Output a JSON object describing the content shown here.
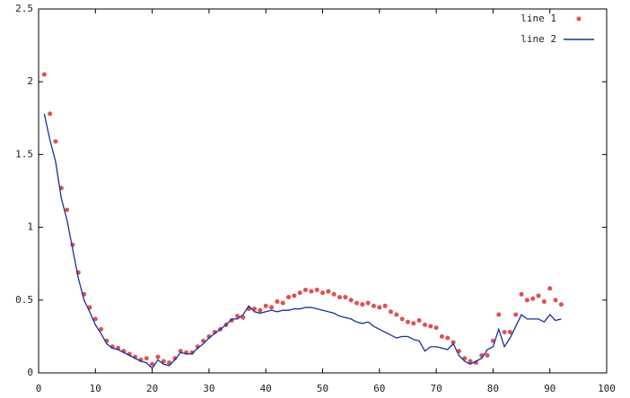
{
  "chart_data": {
    "type": "line",
    "x": [
      1,
      2,
      3,
      4,
      5,
      6,
      7,
      8,
      9,
      10,
      11,
      12,
      13,
      14,
      15,
      16,
      17,
      18,
      19,
      20,
      21,
      22,
      23,
      24,
      25,
      26,
      27,
      28,
      29,
      30,
      31,
      32,
      33,
      34,
      35,
      36,
      37,
      38,
      39,
      40,
      41,
      42,
      43,
      44,
      45,
      46,
      47,
      48,
      49,
      50,
      51,
      52,
      53,
      54,
      55,
      56,
      57,
      58,
      59,
      60,
      61,
      62,
      63,
      64,
      65,
      66,
      67,
      68,
      69,
      70,
      71,
      72,
      73,
      74,
      75,
      76,
      77,
      78,
      79,
      80,
      81,
      82,
      83,
      84,
      85,
      86,
      87,
      88,
      89,
      90,
      91,
      92
    ],
    "series": [
      {
        "name": "line 1",
        "style": "points",
        "color": "#e05050",
        "values": [
          2.05,
          1.78,
          1.59,
          1.27,
          1.12,
          0.88,
          0.69,
          0.54,
          0.45,
          0.37,
          0.3,
          0.22,
          0.18,
          0.17,
          0.15,
          0.13,
          0.11,
          0.09,
          0.1,
          0.06,
          0.11,
          0.08,
          0.07,
          0.1,
          0.15,
          0.14,
          0.14,
          0.18,
          0.22,
          0.25,
          0.28,
          0.3,
          0.33,
          0.36,
          0.39,
          0.38,
          0.44,
          0.44,
          0.43,
          0.46,
          0.45,
          0.49,
          0.48,
          0.52,
          0.53,
          0.55,
          0.57,
          0.56,
          0.57,
          0.55,
          0.56,
          0.54,
          0.52,
          0.52,
          0.5,
          0.48,
          0.47,
          0.48,
          0.46,
          0.45,
          0.46,
          0.42,
          0.4,
          0.37,
          0.35,
          0.34,
          0.36,
          0.33,
          0.32,
          0.31,
          0.25,
          0.24,
          0.21,
          0.15,
          0.1,
          0.08,
          0.07,
          0.12,
          0.12,
          0.22,
          0.4,
          0.28,
          0.28,
          0.4,
          0.54,
          0.5,
          0.51,
          0.53,
          0.49,
          0.58,
          0.5,
          0.47
        ]
      },
      {
        "name": "line 2",
        "style": "lines",
        "color": "#1a2fa0",
        "values": [
          1.78,
          1.6,
          1.45,
          1.2,
          1.05,
          0.85,
          0.65,
          0.5,
          0.42,
          0.33,
          0.27,
          0.2,
          0.17,
          0.16,
          0.14,
          0.12,
          0.1,
          0.08,
          0.07,
          0.03,
          0.09,
          0.06,
          0.05,
          0.09,
          0.14,
          0.13,
          0.13,
          0.17,
          0.2,
          0.24,
          0.27,
          0.3,
          0.33,
          0.37,
          0.37,
          0.4,
          0.46,
          0.42,
          0.41,
          0.42,
          0.43,
          0.42,
          0.43,
          0.43,
          0.44,
          0.44,
          0.45,
          0.45,
          0.44,
          0.43,
          0.42,
          0.41,
          0.39,
          0.38,
          0.37,
          0.35,
          0.34,
          0.35,
          0.32,
          0.3,
          0.28,
          0.26,
          0.24,
          0.25,
          0.25,
          0.23,
          0.22,
          0.15,
          0.18,
          0.18,
          0.17,
          0.16,
          0.2,
          0.12,
          0.08,
          0.06,
          0.08,
          0.1,
          0.16,
          0.18,
          0.3,
          0.18,
          0.24,
          0.32,
          0.4,
          0.37,
          0.37,
          0.37,
          0.35,
          0.4,
          0.36,
          0.37
        ]
      }
    ],
    "xlim": [
      0,
      100
    ],
    "xticks": [
      0,
      10,
      20,
      30,
      40,
      50,
      60,
      70,
      80,
      90,
      100
    ],
    "ylim": [
      0,
      2.5
    ],
    "yticks": [
      0,
      0.5,
      1,
      1.5,
      2,
      2.5
    ],
    "grid": false,
    "legend": "top-right"
  }
}
